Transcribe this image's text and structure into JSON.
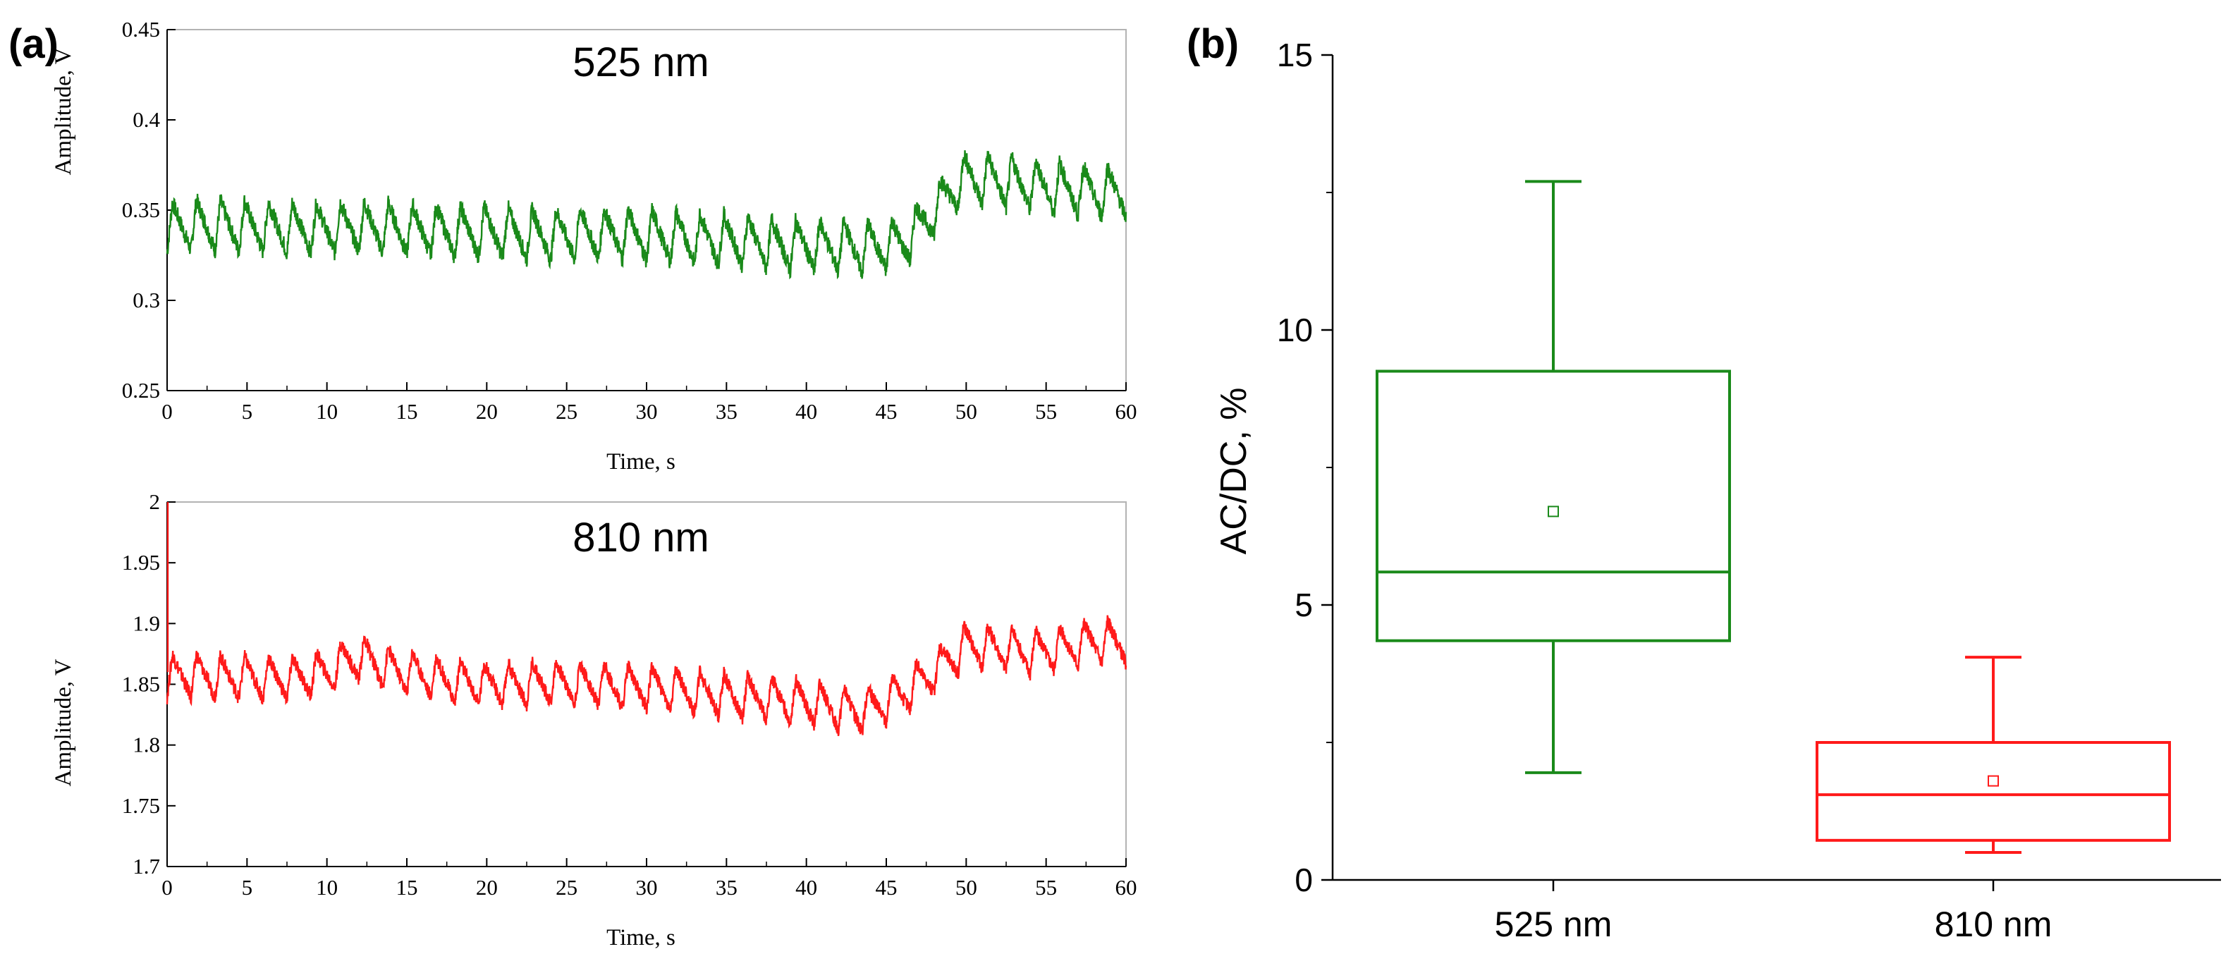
{
  "panels": {
    "a_label": "(a)",
    "b_label": "(b)"
  },
  "chart_data": [
    {
      "id": "a-top",
      "type": "line",
      "annotation": "525 nm",
      "xlabel": "Time, s",
      "ylabel": "Amplitude, V",
      "xlim": [
        0,
        60
      ],
      "ylim": [
        0.25,
        0.45
      ],
      "x_ticks": [
        "0",
        "5",
        "10",
        "15",
        "20",
        "25",
        "30",
        "35",
        "40",
        "45",
        "50",
        "55",
        "60"
      ],
      "y_ticks": [
        "0.25",
        "0.3",
        "0.35",
        "0.4",
        "0.45"
      ],
      "grid": false,
      "color": "#1a8a1a",
      "series": [
        {
          "x": [
            0,
            2,
            4,
            6,
            8,
            10,
            12,
            14,
            16,
            18,
            20,
            22,
            24,
            26,
            28,
            30,
            32,
            34,
            36,
            38,
            40,
            42,
            44,
            46,
            47,
            48,
            49,
            50,
            52,
            54,
            56,
            58,
            60
          ],
          "y": [
            0.34,
            0.342,
            0.341,
            0.341,
            0.34,
            0.34,
            0.341,
            0.34,
            0.339,
            0.338,
            0.338,
            0.337,
            0.336,
            0.337,
            0.337,
            0.336,
            0.335,
            0.334,
            0.333,
            0.331,
            0.33,
            0.33,
            0.329,
            0.332,
            0.34,
            0.35,
            0.36,
            0.368,
            0.366,
            0.364,
            0.362,
            0.36,
            0.36
          ],
          "pulse_period_s": 1.5,
          "ripple_amplitude": 0.028
        }
      ]
    },
    {
      "id": "a-bottom",
      "type": "line",
      "annotation": "810 nm",
      "xlabel": "Time, s",
      "ylabel": "Amplitude, V",
      "xlim": [
        0,
        60
      ],
      "ylim": [
        1.7,
        2.0
      ],
      "x_ticks": [
        "0",
        "5",
        "10",
        "15",
        "20",
        "25",
        "30",
        "35",
        "40",
        "45",
        "50",
        "55",
        "60"
      ],
      "y_ticks": [
        "1.7",
        "1.75",
        "1.8",
        "1.85",
        "1.9",
        "1.95",
        "2"
      ],
      "grid": false,
      "color": "#ff1a1a",
      "series": [
        {
          "x": [
            0,
            2,
            4,
            6,
            8,
            10,
            11,
            12,
            13,
            14,
            16,
            18,
            20,
            22,
            24,
            26,
            28,
            30,
            32,
            34,
            36,
            38,
            40,
            42,
            43,
            44,
            46,
            48,
            49,
            50,
            52,
            54,
            56,
            58,
            60
          ],
          "y": [
            1.857,
            1.857,
            1.856,
            1.855,
            1.855,
            1.86,
            1.868,
            1.872,
            1.868,
            1.862,
            1.858,
            1.852,
            1.85,
            1.85,
            1.852,
            1.85,
            1.848,
            1.848,
            1.845,
            1.842,
            1.84,
            1.838,
            1.835,
            1.83,
            1.828,
            1.83,
            1.842,
            1.86,
            1.872,
            1.882,
            1.88,
            1.876,
            1.88,
            1.885,
            1.885
          ],
          "pulse_period_s": 1.5,
          "ripple_amplitude": 0.035
        }
      ]
    },
    {
      "id": "b",
      "type": "box",
      "ylabel": "AC/DC, %",
      "ylim": [
        0,
        15
      ],
      "y_ticks": [
        "0",
        "5",
        "10",
        "15"
      ],
      "categories": [
        "525 nm",
        "810 nm"
      ],
      "grid": false,
      "boxes": [
        {
          "category": "525 nm",
          "color": "#1a8a1a",
          "min": 1.95,
          "q1": 4.35,
          "median": 5.6,
          "mean": 6.7,
          "q3": 9.25,
          "max": 12.7
        },
        {
          "category": "810 nm",
          "color": "#ff1a1a",
          "min": 0.5,
          "q1": 0.72,
          "median": 1.55,
          "mean": 1.8,
          "q3": 2.5,
          "max": 4.05
        }
      ]
    }
  ]
}
